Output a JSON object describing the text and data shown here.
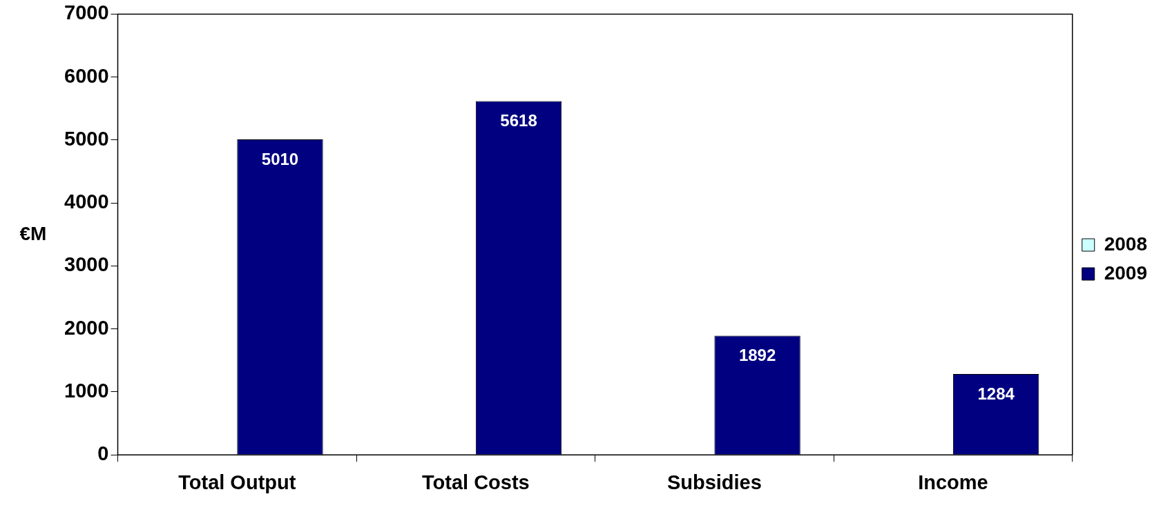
{
  "chart_data": {
    "type": "bar",
    "ylabel": "€M",
    "categories": [
      "Total Output",
      "Total Costs",
      "Subsidies",
      "Income"
    ],
    "series": [
      {
        "name": "2008",
        "color": "#ccffff",
        "values": [
          null,
          null,
          null,
          null
        ]
      },
      {
        "name": "2009",
        "color": "#000080",
        "values": [
          5010,
          5618,
          1892,
          1284
        ]
      }
    ],
    "ylim": [
      0,
      7000
    ],
    "yticks": [
      0,
      1000,
      2000,
      3000,
      4000,
      5000,
      6000,
      7000
    ],
    "grid": false,
    "legend": "right",
    "data_labels": true
  }
}
